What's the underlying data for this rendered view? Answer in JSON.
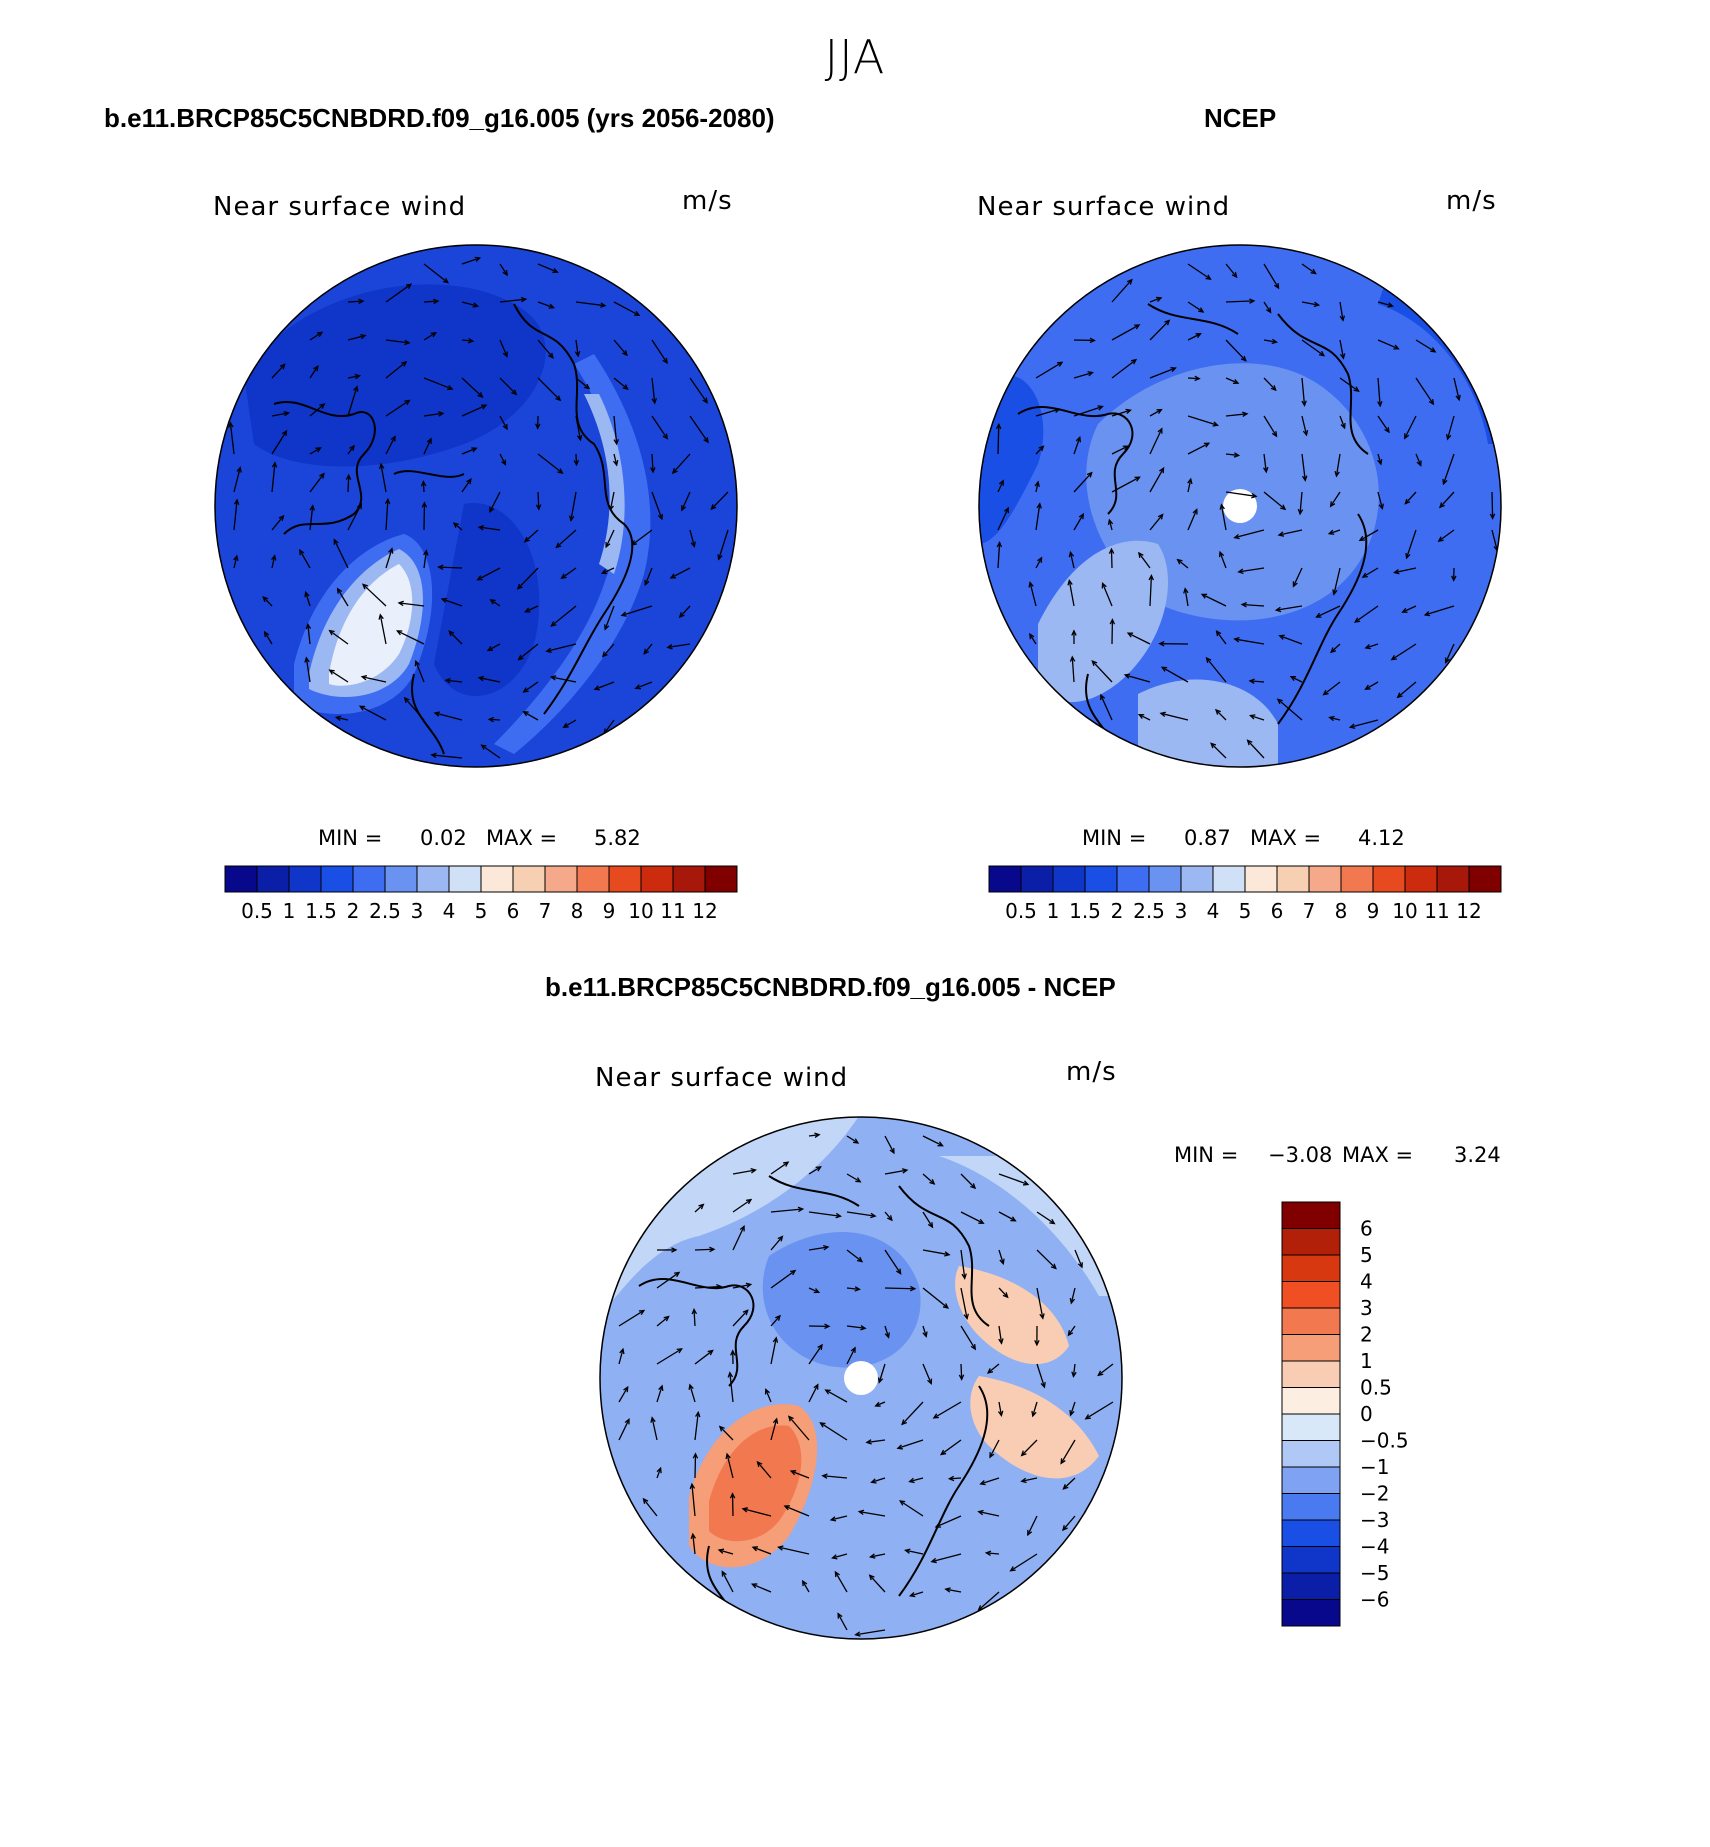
{
  "title": "JJA",
  "colors": {
    "land_line": "#000000",
    "arrow": "#000000"
  },
  "scales": {
    "abs": {
      "colors": [
        "#08088c",
        "#0a1ea8",
        "#0f35c9",
        "#1a4fe6",
        "#3e6df2",
        "#6a92f0",
        "#9cb8f2",
        "#cfe0f7",
        "#fbe8d8",
        "#f7cfb2",
        "#f5a98a",
        "#f2794f",
        "#e64a1e",
        "#cc2b0e",
        "#a8180a",
        "#800000"
      ],
      "labels": [
        "0.5",
        "1",
        "1.5",
        "2",
        "2.5",
        "3",
        "4",
        "5",
        "6",
        "7",
        "8",
        "9",
        "10",
        "11",
        "12"
      ]
    },
    "diff": {
      "colors": [
        "#08088c",
        "#0a1ea8",
        "#0f35c9",
        "#1a4fe6",
        "#4a7af0",
        "#7fa3f2",
        "#b0c8f5",
        "#d8e8f8",
        "#fcefe2",
        "#f8cdb4",
        "#f59e78",
        "#f2794f",
        "#f04e23",
        "#d8380f",
        "#b3200a",
        "#800000"
      ],
      "labels": [
        "6",
        "5",
        "4",
        "3",
        "2",
        "1",
        "0.5",
        "0",
        "−0.5",
        "−1",
        "−2",
        "−3",
        "−4",
        "−5",
        "−6"
      ]
    }
  },
  "chart_data": [
    {
      "type": "heatmap",
      "id": "model",
      "case_title": "b.e11.BRCP85C5CNBDRD.f09_g16.005 (yrs 2056-2080)",
      "title": "Near surface wind",
      "units": "m/s",
      "min_label": "MIN =",
      "min": "0.02",
      "max_label": "MAX =",
      "max": "5.82",
      "projection": "north polar stereographic",
      "colorbar": "horizontal",
      "scale": "abs"
    },
    {
      "type": "heatmap",
      "id": "obs",
      "case_title": "NCEP",
      "title": "Near surface wind",
      "units": "m/s",
      "min_label": "MIN =",
      "min": "0.87",
      "max_label": "MAX =",
      "max": "4.12",
      "projection": "north polar stereographic",
      "colorbar": "horizontal",
      "scale": "abs"
    },
    {
      "type": "heatmap",
      "id": "diff",
      "case_title": "b.e11.BRCP85C5CNBDRD.f09_g16.005 - NCEP",
      "title": "Near surface wind",
      "units": "m/s",
      "min_label": "MIN =",
      "min": "−3.08",
      "max_label": "MAX =",
      "max": "3.24",
      "projection": "north polar stereographic",
      "colorbar": "vertical",
      "scale": "diff"
    }
  ]
}
